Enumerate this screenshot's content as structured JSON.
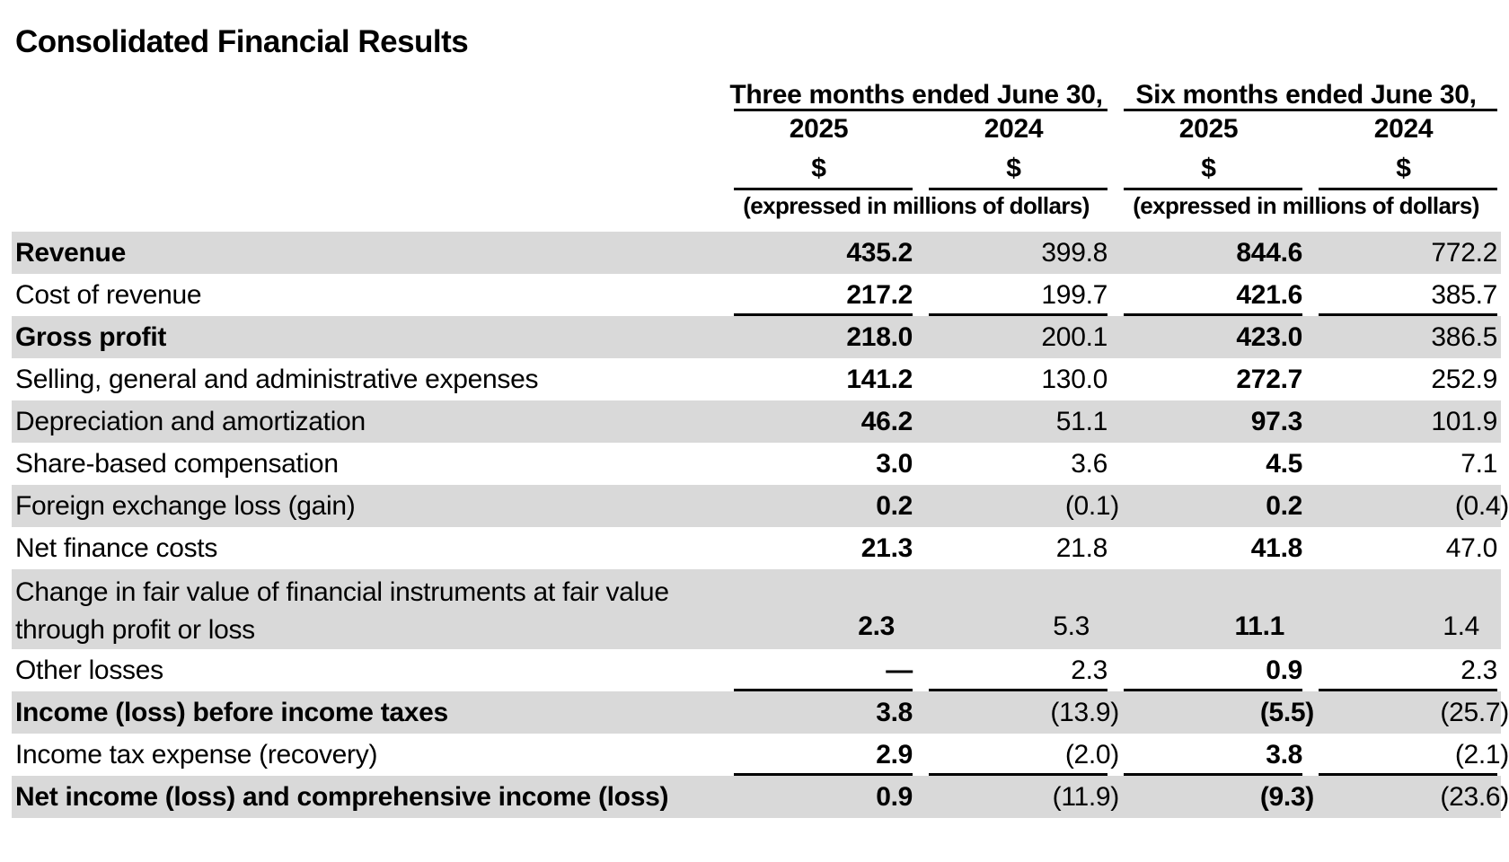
{
  "title": "Consolidated Financial Results",
  "colors": {
    "row_shading": "#d9d9d9",
    "text": "#000000",
    "rule": "#000000"
  },
  "table": {
    "column_groups": [
      {
        "label": "Three months ended June 30,",
        "years": [
          "2025",
          "2024"
        ],
        "currency_symbols": [
          "$",
          "$"
        ],
        "units_note": "(expressed in millions of dollars)"
      },
      {
        "label": "Six months ended June 30,",
        "years": [
          "2025",
          "2024"
        ],
        "currency_symbols": [
          "$",
          "$"
        ],
        "units_note": "(expressed in millions of dollars)"
      }
    ],
    "rows": [
      {
        "label": "Revenue",
        "bold": true,
        "shaded": true,
        "rule_below": false,
        "tall": false,
        "values": [
          "435.2",
          "399.8",
          "844.6",
          "772.2"
        ]
      },
      {
        "label": "Cost of revenue",
        "bold": false,
        "shaded": false,
        "rule_below": true,
        "tall": false,
        "values": [
          "217.2",
          "199.7",
          "421.6",
          "385.7"
        ]
      },
      {
        "label": "Gross profit",
        "bold": true,
        "shaded": true,
        "rule_below": false,
        "tall": false,
        "values": [
          "218.0",
          "200.1",
          "423.0",
          "386.5"
        ]
      },
      {
        "label": "Selling, general and administrative expenses",
        "bold": false,
        "shaded": false,
        "rule_below": false,
        "tall": false,
        "values": [
          "141.2",
          "130.0",
          "272.7",
          "252.9"
        ]
      },
      {
        "label": "Depreciation and amortization",
        "bold": false,
        "shaded": true,
        "rule_below": false,
        "tall": false,
        "values": [
          "46.2",
          "51.1",
          "97.3",
          "101.9"
        ]
      },
      {
        "label": "Share-based compensation",
        "bold": false,
        "shaded": false,
        "rule_below": false,
        "tall": false,
        "values": [
          "3.0",
          "3.6",
          "4.5",
          "7.1"
        ]
      },
      {
        "label": "Foreign exchange loss (gain)",
        "bold": false,
        "shaded": true,
        "rule_below": false,
        "tall": false,
        "values": [
          "0.2",
          "(0.1)",
          "0.2",
          "(0.4)"
        ]
      },
      {
        "label": "Net finance costs",
        "bold": false,
        "shaded": false,
        "rule_below": false,
        "tall": false,
        "values": [
          "21.3",
          "21.8",
          "41.8",
          "47.0"
        ]
      },
      {
        "label": "Change in fair value of financial instruments at fair value through profit or loss",
        "bold": false,
        "shaded": true,
        "rule_below": false,
        "tall": true,
        "values": [
          "2.3",
          "5.3",
          "11.1",
          "1.4"
        ]
      },
      {
        "label": "Other losses",
        "bold": false,
        "shaded": false,
        "rule_below": true,
        "tall": false,
        "values": [
          "—",
          "2.3",
          "0.9",
          "2.3"
        ]
      },
      {
        "label": "Income (loss) before income taxes",
        "bold": true,
        "shaded": true,
        "rule_below": false,
        "tall": false,
        "values": [
          "3.8",
          "(13.9)",
          "(5.5)",
          "(25.7)"
        ]
      },
      {
        "label": "Income tax expense (recovery)",
        "bold": false,
        "shaded": false,
        "rule_below": true,
        "tall": false,
        "values": [
          "2.9",
          "(2.0)",
          "3.8",
          "(2.1)"
        ]
      },
      {
        "label": "Net income (loss) and comprehensive income (loss)",
        "bold": true,
        "shaded": true,
        "rule_below": false,
        "tall": false,
        "values": [
          "0.9",
          "(11.9)",
          "(9.3)",
          "(23.6)"
        ]
      }
    ]
  }
}
